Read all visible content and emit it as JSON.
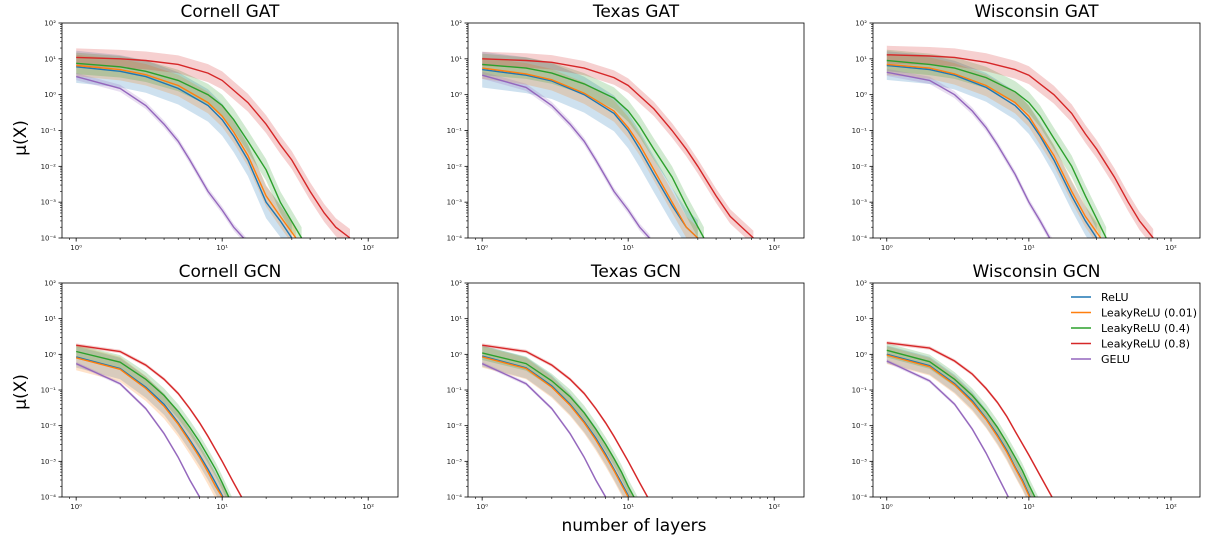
{
  "figure": {
    "ylabel": "μ(X)",
    "xlabel": "number of layers"
  },
  "chart_data": [
    {
      "type": "line",
      "title": "Cornell GAT",
      "xscale": "log",
      "yscale": "log",
      "xlim": [
        0.8,
        160
      ],
      "ylim": [
        0.0001,
        100
      ],
      "xticks": [
        "10⁰",
        "10¹",
        "10²"
      ],
      "yticks": [
        "10⁻⁴",
        "10⁻³",
        "10⁻²",
        "10⁻¹",
        "10⁰",
        "10¹",
        "10²"
      ],
      "series": [
        {
          "name": "ReLU",
          "color": "#1f77b4",
          "x": [
            1,
            2,
            3,
            5,
            8,
            10,
            12,
            15,
            20,
            25,
            30
          ],
          "y": [
            6,
            4.5,
            3.2,
            1.5,
            0.5,
            0.2,
            0.07,
            0.015,
            0.001,
            0.0003,
            0.0001
          ],
          "band": 0.45
        },
        {
          "name": "LeakyReLU (0.01)",
          "color": "#ff7f0e",
          "x": [
            1,
            2,
            3,
            5,
            8,
            10,
            12,
            15,
            20,
            25,
            32
          ],
          "y": [
            6.5,
            5,
            3.6,
            1.8,
            0.6,
            0.25,
            0.09,
            0.02,
            0.0015,
            0.0004,
            0.0001
          ],
          "band": 0.3
        },
        {
          "name": "LeakyReLU (0.4)",
          "color": "#2ca02c",
          "x": [
            1,
            2,
            3,
            5,
            8,
            10,
            12,
            15,
            20,
            25,
            35
          ],
          "y": [
            7.5,
            6,
            4.5,
            2.5,
            1,
            0.5,
            0.2,
            0.05,
            0.008,
            0.001,
            0.0001
          ],
          "band": 0.3
        },
        {
          "name": "LeakyReLU (0.8)",
          "color": "#d62728",
          "x": [
            1,
            2,
            3,
            5,
            8,
            10,
            15,
            20,
            25,
            30,
            40,
            50,
            60,
            75
          ],
          "y": [
            11,
            10,
            9,
            7,
            4,
            2.5,
            0.6,
            0.15,
            0.04,
            0.015,
            0.002,
            0.0005,
            0.0002,
            0.0001
          ],
          "band": 0.25
        },
        {
          "name": "GELU",
          "color": "#9467bd",
          "x": [
            1,
            2,
            3,
            4,
            5,
            6,
            8,
            10,
            12,
            14,
            16
          ],
          "y": [
            3.2,
            1.5,
            0.5,
            0.15,
            0.05,
            0.015,
            0.002,
            0.0006,
            0.0002,
            0.0001,
            5e-05
          ],
          "band": 0.1
        }
      ]
    },
    {
      "type": "line",
      "title": "Texas GAT",
      "xscale": "log",
      "yscale": "log",
      "xlim": [
        0.8,
        160
      ],
      "ylim": [
        0.0001,
        100
      ],
      "xticks": [
        "10⁰",
        "10¹",
        "10²"
      ],
      "yticks": [
        "10⁻⁴",
        "10⁻³",
        "10⁻²",
        "10⁻¹",
        "10⁰",
        "10¹",
        "10²"
      ],
      "series": [
        {
          "name": "ReLU",
          "color": "#1f77b4",
          "x": [
            1,
            2,
            3,
            5,
            8,
            10,
            12,
            15,
            20,
            25,
            30
          ],
          "y": [
            5,
            3.5,
            2.4,
            1,
            0.3,
            0.1,
            0.03,
            0.006,
            0.0008,
            0.0002,
            0.0001
          ],
          "band": 0.5
        },
        {
          "name": "LeakyReLU (0.01)",
          "color": "#ff7f0e",
          "x": [
            1,
            2,
            3,
            5,
            8,
            10,
            12,
            15,
            20,
            25,
            30
          ],
          "y": [
            5.5,
            3.8,
            2.6,
            1.1,
            0.35,
            0.12,
            0.04,
            0.008,
            0.001,
            0.0002,
            0.0001
          ],
          "band": 0.3
        },
        {
          "name": "LeakyReLU (0.4)",
          "color": "#2ca02c",
          "x": [
            1,
            2,
            3,
            5,
            8,
            10,
            12,
            15,
            20,
            25,
            33
          ],
          "y": [
            7,
            5.5,
            4,
            2,
            0.8,
            0.35,
            0.13,
            0.03,
            0.005,
            0.0008,
            0.0001
          ],
          "band": 0.3
        },
        {
          "name": "LeakyReLU (0.8)",
          "color": "#d62728",
          "x": [
            1,
            2,
            3,
            5,
            8,
            10,
            15,
            20,
            25,
            30,
            40,
            50,
            60,
            72
          ],
          "y": [
            10,
            9,
            8,
            5.5,
            3,
            1.8,
            0.4,
            0.1,
            0.03,
            0.01,
            0.0015,
            0.0004,
            0.0002,
            0.0001
          ],
          "band": 0.2
        },
        {
          "name": "GELU",
          "color": "#9467bd",
          "x": [
            1,
            2,
            3,
            4,
            5,
            6,
            8,
            10,
            12,
            14,
            15
          ],
          "y": [
            3.5,
            1.6,
            0.5,
            0.15,
            0.05,
            0.015,
            0.002,
            0.0006,
            0.0002,
            0.0001,
            5e-05
          ],
          "band": 0.1
        }
      ]
    },
    {
      "type": "line",
      "title": "Wisconsin GAT",
      "xscale": "log",
      "yscale": "log",
      "xlim": [
        0.8,
        160
      ],
      "ylim": [
        0.0001,
        100
      ],
      "xticks": [
        "10⁰",
        "10¹",
        "10²"
      ],
      "yticks": [
        "10⁻⁴",
        "10⁻³",
        "10⁻²",
        "10⁻¹",
        "10⁰",
        "10¹",
        "10²"
      ],
      "series": [
        {
          "name": "ReLU",
          "color": "#1f77b4",
          "x": [
            1,
            2,
            3,
            5,
            8,
            10,
            12,
            15,
            20,
            25,
            30
          ],
          "y": [
            6.5,
            5,
            3.5,
            1.6,
            0.5,
            0.2,
            0.07,
            0.015,
            0.0015,
            0.0003,
            0.0001
          ],
          "band": 0.4
        },
        {
          "name": "LeakyReLU (0.01)",
          "color": "#ff7f0e",
          "x": [
            1,
            2,
            3,
            5,
            8,
            10,
            12,
            15,
            20,
            25,
            32
          ],
          "y": [
            7,
            5.5,
            3.8,
            1.8,
            0.6,
            0.25,
            0.08,
            0.02,
            0.002,
            0.0004,
            0.0001
          ],
          "band": 0.3
        },
        {
          "name": "LeakyReLU (0.4)",
          "color": "#2ca02c",
          "x": [
            1,
            2,
            3,
            5,
            8,
            10,
            12,
            15,
            20,
            25,
            35
          ],
          "y": [
            9,
            7,
            5.5,
            3,
            1.2,
            0.6,
            0.25,
            0.06,
            0.01,
            0.0015,
            0.0001
          ],
          "band": 0.3
        },
        {
          "name": "LeakyReLU (0.8)",
          "color": "#d62728",
          "x": [
            1,
            2,
            3,
            5,
            8,
            10,
            15,
            20,
            25,
            30,
            40,
            50,
            60,
            75
          ],
          "y": [
            13,
            12,
            11,
            8,
            5,
            3.5,
            1,
            0.3,
            0.08,
            0.03,
            0.005,
            0.001,
            0.0003,
            0.0001
          ],
          "band": 0.25
        },
        {
          "name": "GELU",
          "color": "#9467bd",
          "x": [
            1,
            2,
            3,
            4,
            5,
            6,
            8,
            10,
            12,
            14,
            16
          ],
          "y": [
            4.2,
            2.5,
            1,
            0.35,
            0.12,
            0.04,
            0.006,
            0.001,
            0.0003,
            0.0001,
            5e-05
          ],
          "band": 0.1
        }
      ]
    },
    {
      "type": "line",
      "title": "Cornell GCN",
      "xscale": "log",
      "yscale": "log",
      "xlim": [
        0.8,
        160
      ],
      "ylim": [
        0.0001,
        100
      ],
      "xticks": [
        "10⁰",
        "10¹",
        "10²"
      ],
      "yticks": [
        "10⁻⁴",
        "10⁻³",
        "10⁻²",
        "10⁻¹",
        "10⁰",
        "10¹",
        "10²"
      ],
      "series": [
        {
          "name": "ReLU",
          "color": "#1f77b4",
          "x": [
            1,
            2,
            3,
            4,
            5,
            6,
            7,
            8,
            9,
            10,
            11
          ],
          "y": [
            0.85,
            0.4,
            0.12,
            0.04,
            0.012,
            0.004,
            0.0015,
            0.0006,
            0.00025,
            0.00011,
            5e-05
          ],
          "band": 0.3
        },
        {
          "name": "LeakyReLU (0.01)",
          "color": "#ff7f0e",
          "x": [
            1,
            2,
            3,
            4,
            5,
            6,
            7,
            8,
            9,
            10,
            11
          ],
          "y": [
            0.8,
            0.38,
            0.11,
            0.035,
            0.011,
            0.0035,
            0.0013,
            0.0005,
            0.0002,
            0.0001,
            5e-05
          ],
          "band": 0.35
        },
        {
          "name": "LeakyReLU (0.4)",
          "color": "#2ca02c",
          "x": [
            1,
            2,
            3,
            4,
            5,
            6,
            7,
            8,
            9,
            10,
            12
          ],
          "y": [
            1.2,
            0.6,
            0.2,
            0.07,
            0.025,
            0.009,
            0.0035,
            0.0014,
            0.0006,
            0.00025,
            5e-05
          ],
          "band": 0.2
        },
        {
          "name": "LeakyReLU (0.8)",
          "color": "#d62728",
          "x": [
            1,
            2,
            3,
            4,
            5,
            6,
            7,
            8,
            10,
            12,
            14
          ],
          "y": [
            1.8,
            1.2,
            0.5,
            0.2,
            0.08,
            0.03,
            0.012,
            0.005,
            0.001,
            0.00025,
            8e-05
          ],
          "band": 0.05
        },
        {
          "name": "GELU",
          "color": "#9467bd",
          "x": [
            1,
            2,
            3,
            4,
            5,
            6,
            7,
            8
          ],
          "y": [
            0.55,
            0.15,
            0.03,
            0.006,
            0.0013,
            0.0003,
            0.0001,
            4e-05
          ],
          "band": 0.05
        }
      ]
    },
    {
      "type": "line",
      "title": "Texas GCN",
      "xscale": "log",
      "yscale": "log",
      "xlim": [
        0.8,
        160
      ],
      "ylim": [
        0.0001,
        100
      ],
      "xticks": [
        "10⁰",
        "10¹",
        "10²"
      ],
      "yticks": [
        "10⁻⁴",
        "10⁻³",
        "10⁻²",
        "10⁻¹",
        "10⁰",
        "10¹",
        "10²"
      ],
      "series": [
        {
          "name": "ReLU",
          "color": "#1f77b4",
          "x": [
            1,
            2,
            3,
            4,
            5,
            6,
            7,
            8,
            9,
            10,
            11
          ],
          "y": [
            0.9,
            0.42,
            0.13,
            0.04,
            0.013,
            0.0045,
            0.0016,
            0.0006,
            0.00025,
            0.00011,
            5e-05
          ],
          "band": 0.3
        },
        {
          "name": "LeakyReLU (0.01)",
          "color": "#ff7f0e",
          "x": [
            1,
            2,
            3,
            4,
            5,
            6,
            7,
            8,
            9,
            10,
            11
          ],
          "y": [
            0.85,
            0.4,
            0.12,
            0.037,
            0.012,
            0.004,
            0.0014,
            0.00055,
            0.00022,
            0.0001,
            5e-05
          ],
          "band": 0.3
        },
        {
          "name": "LeakyReLU (0.4)",
          "color": "#2ca02c",
          "x": [
            1,
            2,
            3,
            4,
            5,
            6,
            7,
            8,
            9,
            10,
            12
          ],
          "y": [
            1.1,
            0.55,
            0.18,
            0.065,
            0.023,
            0.008,
            0.003,
            0.0012,
            0.0005,
            0.0002,
            5e-05
          ],
          "band": 0.2
        },
        {
          "name": "LeakyReLU (0.8)",
          "color": "#d62728",
          "x": [
            1,
            2,
            3,
            4,
            5,
            6,
            7,
            8,
            10,
            12,
            14
          ],
          "y": [
            1.8,
            1.2,
            0.5,
            0.2,
            0.08,
            0.03,
            0.012,
            0.005,
            0.001,
            0.00025,
            8e-05
          ],
          "band": 0.05
        },
        {
          "name": "GELU",
          "color": "#9467bd",
          "x": [
            1,
            2,
            3,
            4,
            5,
            6,
            7,
            8
          ],
          "y": [
            0.55,
            0.15,
            0.03,
            0.006,
            0.0013,
            0.0003,
            0.0001,
            4e-05
          ],
          "band": 0.05
        }
      ]
    },
    {
      "type": "line",
      "title": "Wisconsin GCN",
      "xscale": "log",
      "yscale": "log",
      "xlim": [
        0.8,
        160
      ],
      "ylim": [
        0.0001,
        100
      ],
      "xticks": [
        "10⁰",
        "10¹",
        "10²"
      ],
      "yticks": [
        "10⁻⁴",
        "10⁻³",
        "10⁻²",
        "10⁻¹",
        "10⁰",
        "10¹",
        "10²"
      ],
      "legend": "top-right",
      "series": [
        {
          "name": "ReLU",
          "color": "#1f77b4",
          "x": [
            1,
            2,
            3,
            4,
            5,
            6,
            7,
            8,
            9,
            10,
            11
          ],
          "y": [
            1,
            0.48,
            0.15,
            0.05,
            0.016,
            0.0055,
            0.002,
            0.0007,
            0.0003,
            0.00012,
            5e-05
          ],
          "band": 0.25
        },
        {
          "name": "LeakyReLU (0.01)",
          "color": "#ff7f0e",
          "x": [
            1,
            2,
            3,
            4,
            5,
            6,
            7,
            8,
            9,
            10,
            11
          ],
          "y": [
            0.95,
            0.45,
            0.14,
            0.045,
            0.015,
            0.005,
            0.0018,
            0.00065,
            0.00027,
            0.00011,
            5e-05
          ],
          "band": 0.25
        },
        {
          "name": "LeakyReLU (0.4)",
          "color": "#2ca02c",
          "x": [
            1,
            2,
            3,
            4,
            5,
            6,
            7,
            8,
            9,
            10,
            12
          ],
          "y": [
            1.3,
            0.62,
            0.2,
            0.07,
            0.025,
            0.009,
            0.0033,
            0.0013,
            0.00055,
            0.00022,
            5e-05
          ],
          "band": 0.2
        },
        {
          "name": "LeakyReLU (0.8)",
          "color": "#d62728",
          "x": [
            1,
            2,
            3,
            4,
            5,
            6,
            7,
            8,
            10,
            12,
            15
          ],
          "y": [
            2.1,
            1.5,
            0.65,
            0.28,
            0.11,
            0.045,
            0.018,
            0.007,
            0.0015,
            0.0004,
            8e-05
          ],
          "band": 0.05
        },
        {
          "name": "GELU",
          "color": "#9467bd",
          "x": [
            1,
            2,
            3,
            4,
            5,
            6,
            7,
            8
          ],
          "y": [
            0.65,
            0.18,
            0.04,
            0.008,
            0.0017,
            0.0004,
            0.00012,
            4e-05
          ],
          "band": 0.05
        }
      ]
    }
  ]
}
